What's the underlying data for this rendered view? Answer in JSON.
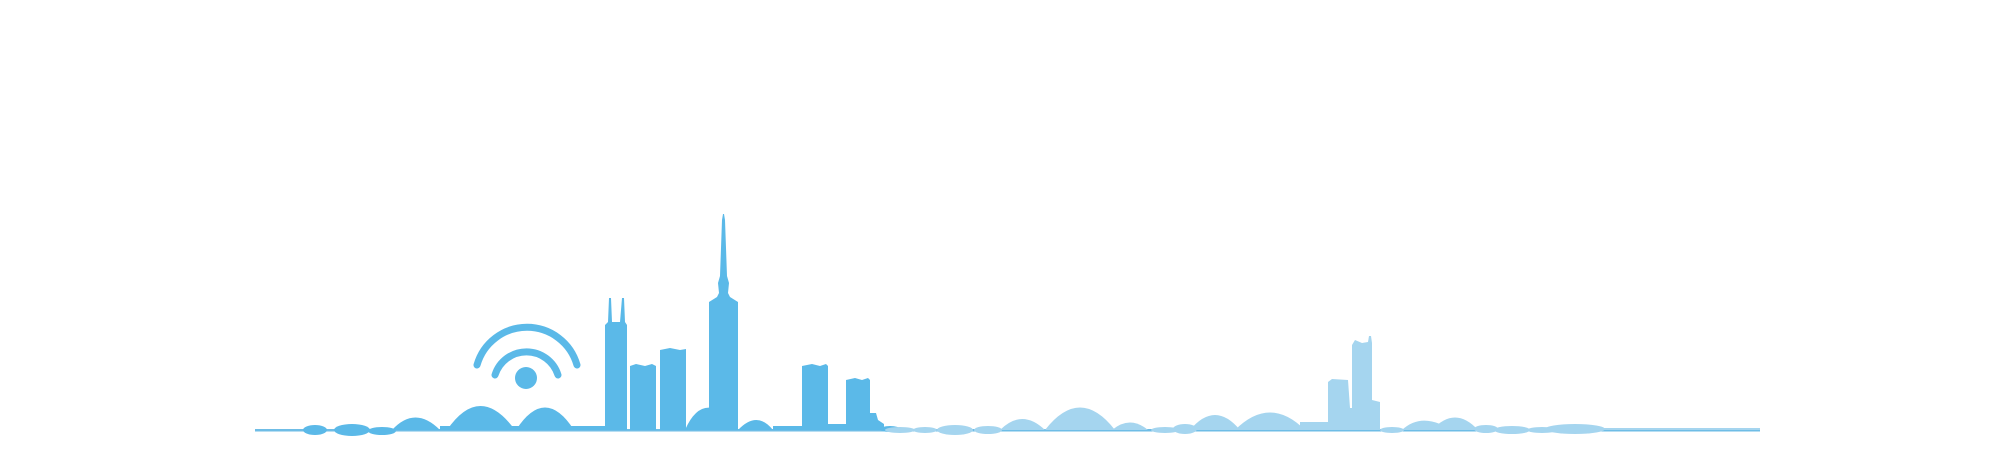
{
  "colors": {
    "background": "#ffffff",
    "primary": "#5bb9e8",
    "secondary": "#a5d5ef",
    "ground_line": "#6fbde6"
  },
  "illustration": {
    "type": "city-skyline-with-wifi-signal",
    "icons": [
      "wifi-signal-icon"
    ]
  }
}
